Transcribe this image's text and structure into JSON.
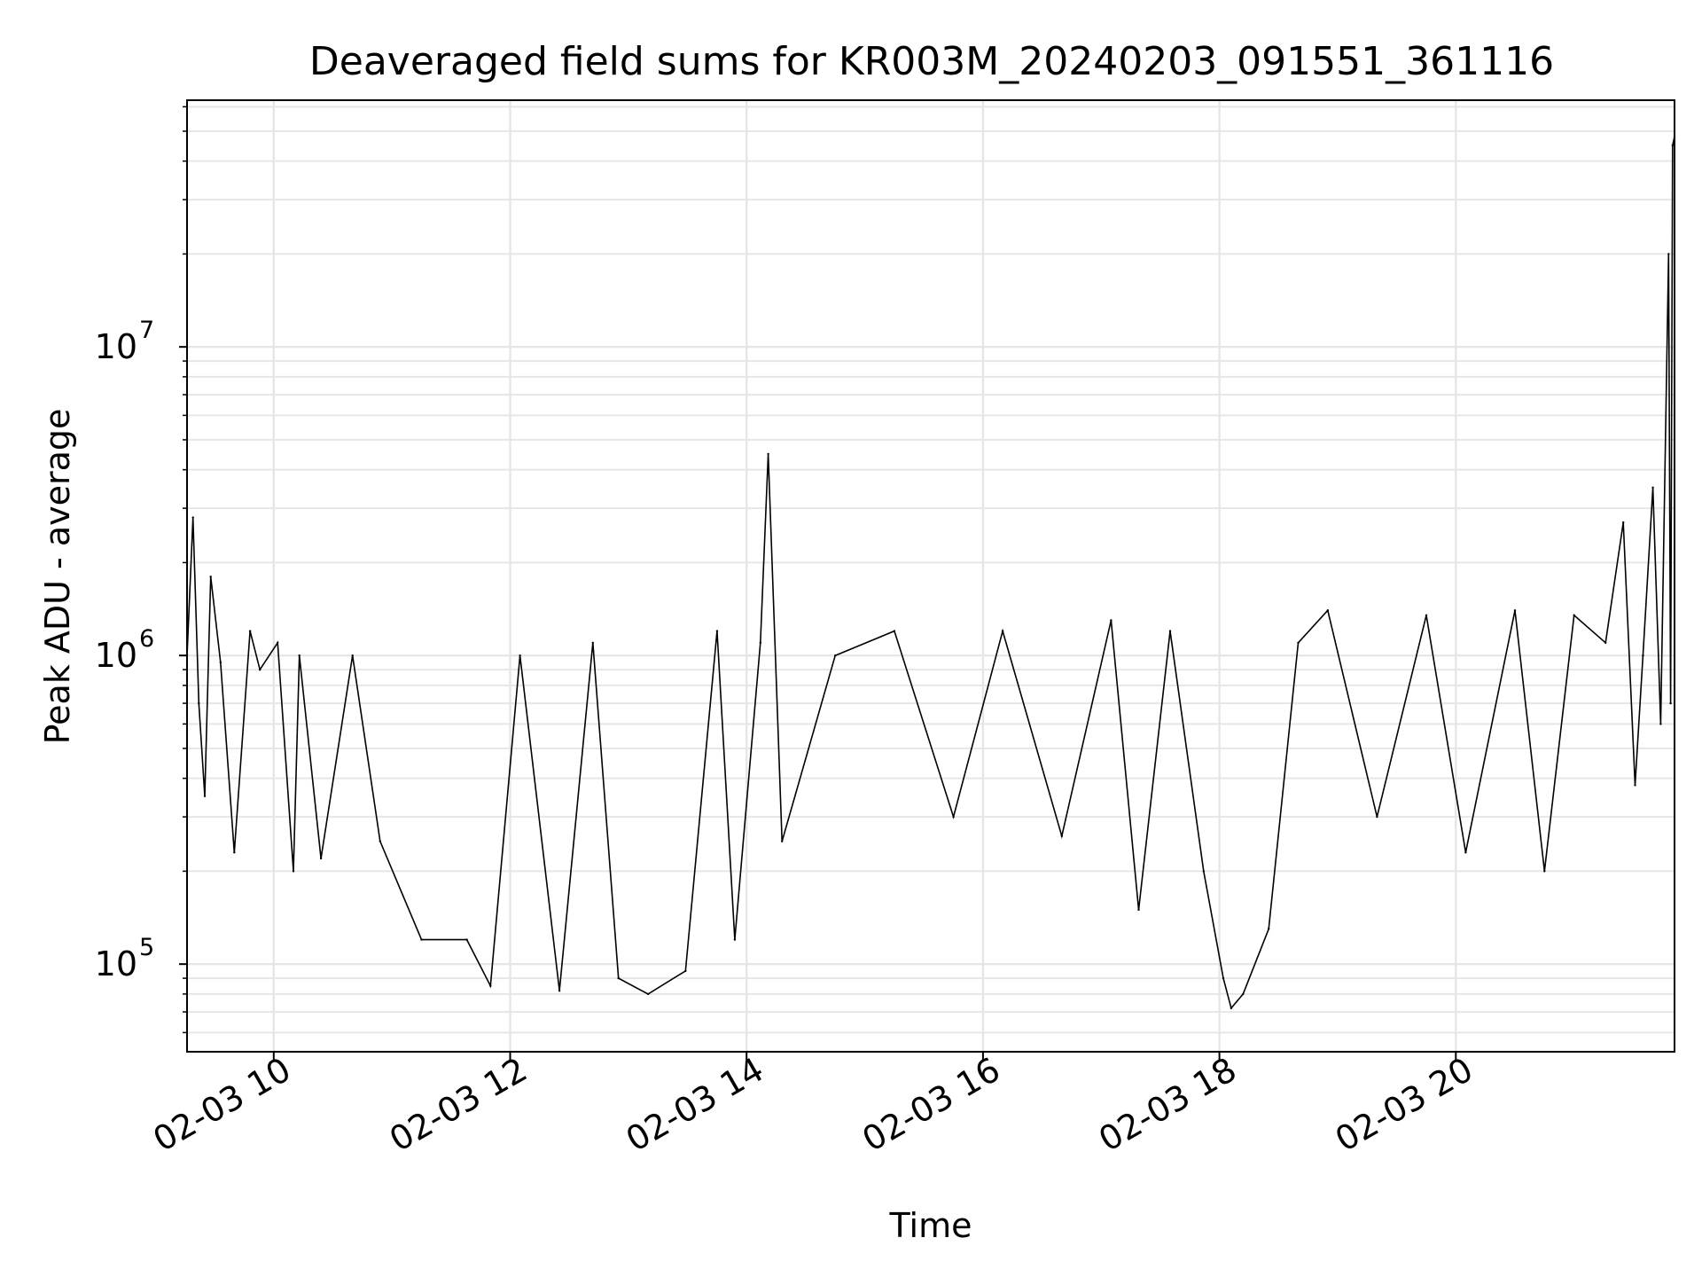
{
  "chart_data": {
    "type": "line",
    "title": "Deaveraged field sums for KR003M_20240203_091551_361116",
    "xlabel": "Time",
    "ylabel": "Peak ADU - average",
    "x_axis": {
      "kind": "datetime",
      "range": [
        "2024-02-03T09:16",
        "2024-02-03T21:51"
      ],
      "ticks": [
        {
          "value": "2024-02-03T10:00",
          "label": "02-03 10"
        },
        {
          "value": "2024-02-03T12:00",
          "label": "02-03 12"
        },
        {
          "value": "2024-02-03T14:00",
          "label": "02-03 14"
        },
        {
          "value": "2024-02-03T16:00",
          "label": "02-03 16"
        },
        {
          "value": "2024-02-03T18:00",
          "label": "02-03 18"
        },
        {
          "value": "2024-02-03T20:00",
          "label": "02-03 20"
        }
      ]
    },
    "y_axis": {
      "scale": "log",
      "range": [
        52000,
        63000000
      ],
      "ticks": [
        {
          "value": 100000,
          "base": "10",
          "exp": "5"
        },
        {
          "value": 1000000,
          "base": "10",
          "exp": "6"
        },
        {
          "value": 10000000,
          "base": "10",
          "exp": "7"
        }
      ]
    },
    "grid": true,
    "line_color": "#000000",
    "series": [
      {
        "x": [
          "2024-02-03T09:16",
          "2024-02-03T09:19",
          "2024-02-03T09:22",
          "2024-02-03T09:25",
          "2024-02-03T09:28",
          "2024-02-03T09:33",
          "2024-02-03T09:40",
          "2024-02-03T09:48",
          "2024-02-03T09:53",
          "2024-02-03T10:02",
          "2024-02-03T10:10",
          "2024-02-03T10:13",
          "2024-02-03T10:24",
          "2024-02-03T10:40",
          "2024-02-03T10:54",
          "2024-02-03T11:15",
          "2024-02-03T11:38",
          "2024-02-03T11:50",
          "2024-02-03T12:05",
          "2024-02-03T12:25",
          "2024-02-03T12:42",
          "2024-02-03T12:55",
          "2024-02-03T13:10",
          "2024-02-03T13:29",
          "2024-02-03T13:45",
          "2024-02-03T13:54",
          "2024-02-03T14:07",
          "2024-02-03T14:11",
          "2024-02-03T14:18",
          "2024-02-03T14:45",
          "2024-02-03T15:15",
          "2024-02-03T15:45",
          "2024-02-03T16:10",
          "2024-02-03T16:40",
          "2024-02-03T17:05",
          "2024-02-03T17:19",
          "2024-02-03T17:35",
          "2024-02-03T17:52",
          "2024-02-03T18:02",
          "2024-02-03T18:06",
          "2024-02-03T18:12",
          "2024-02-03T18:25",
          "2024-02-03T18:40",
          "2024-02-03T18:55",
          "2024-02-03T19:20",
          "2024-02-03T19:45",
          "2024-02-03T20:05",
          "2024-02-03T20:30",
          "2024-02-03T20:45",
          "2024-02-03T21:00",
          "2024-02-03T21:16",
          "2024-02-03T21:25",
          "2024-02-03T21:31",
          "2024-02-03T21:35",
          "2024-02-03T21:40",
          "2024-02-03T21:44",
          "2024-02-03T21:48",
          "2024-02-03T21:49",
          "2024-02-03T21:50",
          "2024-02-03T21:51"
        ],
        "y": [
          1000000,
          2800000,
          700000,
          350000,
          1800000,
          950000,
          230000,
          1200000,
          900000,
          1100000,
          200000,
          1000000,
          220000,
          1000000,
          250000,
          120000,
          120000,
          85000,
          1000000,
          82000,
          1100000,
          90000,
          80000,
          95000,
          1200000,
          120000,
          1100000,
          4500000,
          250000,
          1000000,
          1200000,
          300000,
          1200000,
          260000,
          1300000,
          150000,
          1200000,
          200000,
          90000,
          72000,
          80000,
          130000,
          1100000,
          1400000,
          300000,
          1350000,
          230000,
          1400000,
          200000,
          1350000,
          1100000,
          2700000,
          380000,
          1000000,
          3500000,
          600000,
          20000000,
          700000,
          45000000,
          48000000
        ]
      }
    ]
  }
}
